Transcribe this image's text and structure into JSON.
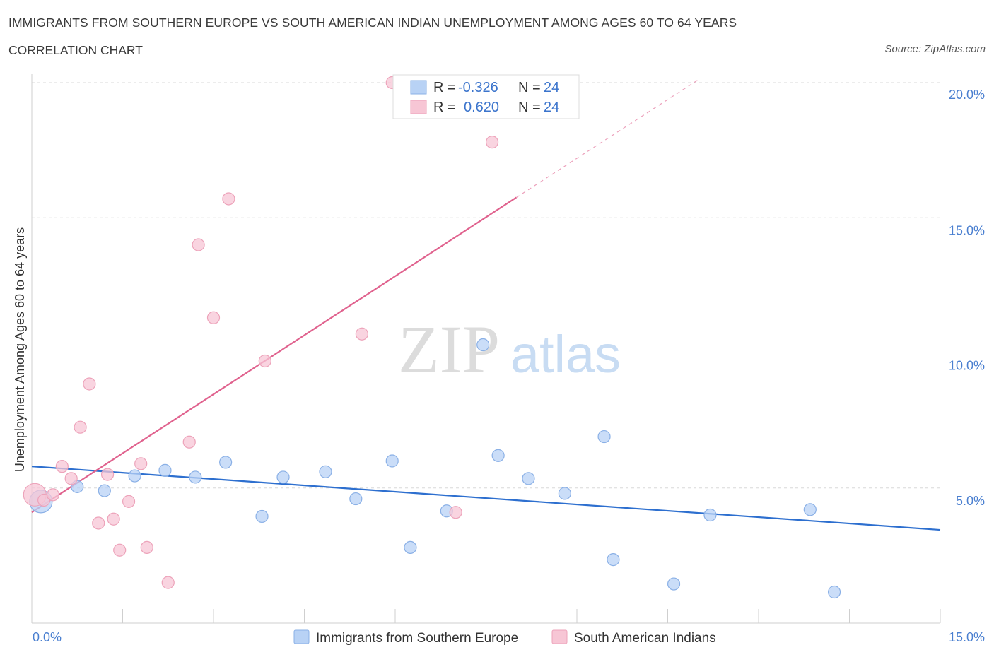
{
  "header": {
    "title": "IMMIGRANTS FROM SOUTHERN EUROPE VS SOUTH AMERICAN INDIAN UNEMPLOYMENT AMONG AGES 60 TO 64 YEARS",
    "subtitle": "CORRELATION CHART",
    "source": "Source: ZipAtlas.com"
  },
  "watermark": {
    "zip": "ZIP",
    "atlas": "atlas"
  },
  "colors": {
    "blue_fill": "#b8d2f5",
    "blue_stroke": "#8ab0e6",
    "blue_line": "#2d6fcf",
    "pink_fill": "#f7c6d5",
    "pink_stroke": "#eda3ba",
    "pink_line": "#e0628e",
    "accent_text": "#3b74cc",
    "grid": "#d8d8d8"
  },
  "stats": [
    {
      "r_label": "R = ",
      "r_value": "-0.326",
      "n_label": "N = ",
      "n_value": "24"
    },
    {
      "r_label": "R = ",
      "r_value": "0.620",
      "n_label": "N = ",
      "n_value": "24"
    }
  ],
  "chart_data": {
    "type": "scatter",
    "title": "IMMIGRANTS FROM SOUTHERN EUROPE VS SOUTH AMERICAN INDIAN UNEMPLOYMENT AMONG AGES 60 TO 64 YEARS",
    "xlabel": "",
    "ylabel": "Unemployment Among Ages 60 to 64 years",
    "xlim": [
      0,
      15
    ],
    "ylim": [
      0,
      20
    ],
    "x_tick_labels": [
      "0.0%",
      "15.0%"
    ],
    "y_ticks": [
      {
        "value": 5,
        "label": "5.0%"
      },
      {
        "value": 10,
        "label": "10.0%"
      },
      {
        "value": 15,
        "label": "15.0%"
      },
      {
        "value": 20,
        "label": "20.0%"
      }
    ],
    "legend": [
      "Immigrants from Southern Europe",
      "South American Indians"
    ],
    "series": [
      {
        "name": "Immigrants from Southern Europe",
        "color": "blue",
        "trend": {
          "x": [
            0,
            15
          ],
          "y": [
            5.8,
            3.45
          ],
          "dashed_to": null
        },
        "points": [
          {
            "x": 0.15,
            "y": 4.5,
            "size": "large"
          },
          {
            "x": 0.75,
            "y": 5.05
          },
          {
            "x": 1.2,
            "y": 4.9
          },
          {
            "x": 1.7,
            "y": 5.45
          },
          {
            "x": 2.2,
            "y": 5.65
          },
          {
            "x": 2.7,
            "y": 5.4
          },
          {
            "x": 3.2,
            "y": 5.95
          },
          {
            "x": 3.8,
            "y": 3.95
          },
          {
            "x": 4.15,
            "y": 5.4
          },
          {
            "x": 4.85,
            "y": 5.6
          },
          {
            "x": 5.35,
            "y": 4.6
          },
          {
            "x": 5.95,
            "y": 6.0
          },
          {
            "x": 6.25,
            "y": 2.8
          },
          {
            "x": 6.85,
            "y": 4.15
          },
          {
            "x": 7.45,
            "y": 10.3
          },
          {
            "x": 7.7,
            "y": 6.2
          },
          {
            "x": 8.2,
            "y": 5.35
          },
          {
            "x": 8.8,
            "y": 4.8
          },
          {
            "x": 9.45,
            "y": 6.9
          },
          {
            "x": 9.6,
            "y": 2.35
          },
          {
            "x": 10.6,
            "y": 1.45
          },
          {
            "x": 11.2,
            "y": 4.0
          },
          {
            "x": 12.85,
            "y": 4.2
          },
          {
            "x": 13.25,
            "y": 1.15
          }
        ]
      },
      {
        "name": "South American Indians",
        "color": "pink",
        "trend": {
          "x": [
            0,
            8.0
          ],
          "y": [
            4.1,
            15.75
          ],
          "dashed_to": {
            "x": 11.0,
            "y": 20.1
          }
        },
        "points": [
          {
            "x": 0.05,
            "y": 4.75,
            "size": "large"
          },
          {
            "x": 0.2,
            "y": 4.55
          },
          {
            "x": 0.35,
            "y": 4.75
          },
          {
            "x": 0.5,
            "y": 5.8
          },
          {
            "x": 0.65,
            "y": 5.35
          },
          {
            "x": 0.8,
            "y": 7.25
          },
          {
            "x": 0.95,
            "y": 8.85
          },
          {
            "x": 1.1,
            "y": 3.7
          },
          {
            "x": 1.25,
            "y": 5.5
          },
          {
            "x": 1.35,
            "y": 3.85
          },
          {
            "x": 1.45,
            "y": 2.7
          },
          {
            "x": 1.6,
            "y": 4.5
          },
          {
            "x": 1.8,
            "y": 5.9
          },
          {
            "x": 1.9,
            "y": 2.8
          },
          {
            "x": 2.25,
            "y": 1.5
          },
          {
            "x": 2.6,
            "y": 6.7
          },
          {
            "x": 2.75,
            "y": 14.0
          },
          {
            "x": 3.0,
            "y": 11.3
          },
          {
            "x": 3.25,
            "y": 15.7
          },
          {
            "x": 3.85,
            "y": 9.7
          },
          {
            "x": 5.45,
            "y": 10.7
          },
          {
            "x": 5.95,
            "y": 20.0
          },
          {
            "x": 7.0,
            "y": 4.1
          },
          {
            "x": 7.6,
            "y": 17.8
          }
        ]
      }
    ]
  }
}
